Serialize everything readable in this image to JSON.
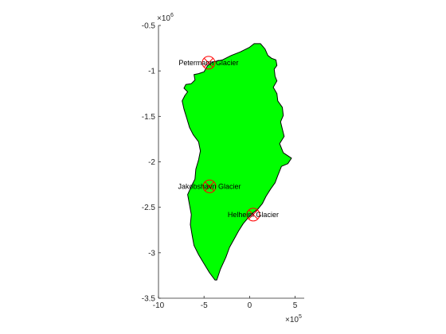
{
  "chart_data": {
    "type": "map",
    "title": "",
    "xlabel": "",
    "ylabel": "",
    "xlim": [
      -1000000,
      600000
    ],
    "ylim": [
      -3500000,
      -500000
    ],
    "grid": false,
    "x_ticks": [
      -1000000,
      -500000,
      0,
      500000
    ],
    "x_tick_labels": [
      "-10",
      "-5",
      "0",
      "5"
    ],
    "x_exponent": {
      "base": "×10",
      "power": "5"
    },
    "y_ticks": [
      -3500000,
      -3000000,
      -2500000,
      -2000000,
      -1500000,
      -1000000,
      -500000
    ],
    "y_tick_labels": [
      "-3.5",
      "-3",
      "-2.5",
      "-2",
      "-1.5",
      "-1",
      "-0.5"
    ],
    "y_exponent": {
      "base": "×10",
      "power": "6"
    },
    "land_color": "#00ff00",
    "coast_color": "#000000",
    "marker_color": "#ff0000",
    "glaciers": [
      {
        "name": "Petermann Glacier",
        "x": -450000,
        "y": -910000
      },
      {
        "name": "Jakobshavn Glacier",
        "x": -440000,
        "y": -2270000
      },
      {
        "name": "Helheim Glacier",
        "x": 40000,
        "y": -2580000
      }
    ],
    "coastline": [
      [
        -610000,
        -1040000
      ],
      [
        -560000,
        -1030000
      ],
      [
        -500000,
        -1010000
      ],
      [
        -460000,
        -940000
      ],
      [
        -400000,
        -900000
      ],
      [
        -300000,
        -880000
      ],
      [
        -200000,
        -830000
      ],
      [
        -100000,
        -790000
      ],
      [
        0,
        -740000
      ],
      [
        50000,
        -700000
      ],
      [
        120000,
        -700000
      ],
      [
        170000,
        -760000
      ],
      [
        200000,
        -830000
      ],
      [
        240000,
        -860000
      ],
      [
        290000,
        -880000
      ],
      [
        300000,
        -940000
      ],
      [
        270000,
        -980000
      ],
      [
        280000,
        -1060000
      ],
      [
        300000,
        -1110000
      ],
      [
        260000,
        -1180000
      ],
      [
        300000,
        -1250000
      ],
      [
        310000,
        -1330000
      ],
      [
        360000,
        -1400000
      ],
      [
        370000,
        -1490000
      ],
      [
        340000,
        -1560000
      ],
      [
        360000,
        -1640000
      ],
      [
        380000,
        -1720000
      ],
      [
        330000,
        -1800000
      ],
      [
        370000,
        -1900000
      ],
      [
        460000,
        -1960000
      ],
      [
        420000,
        -2020000
      ],
      [
        350000,
        -2050000
      ],
      [
        310000,
        -2150000
      ],
      [
        280000,
        -2230000
      ],
      [
        230000,
        -2300000
      ],
      [
        180000,
        -2380000
      ],
      [
        140000,
        -2460000
      ],
      [
        90000,
        -2520000
      ],
      [
        40000,
        -2560000
      ],
      [
        -20000,
        -2620000
      ],
      [
        -70000,
        -2680000
      ],
      [
        -120000,
        -2760000
      ],
      [
        -170000,
        -2850000
      ],
      [
        -220000,
        -2940000
      ],
      [
        -260000,
        -3050000
      ],
      [
        -320000,
        -3180000
      ],
      [
        -360000,
        -3300000
      ],
      [
        -380000,
        -3300000
      ],
      [
        -440000,
        -3220000
      ],
      [
        -500000,
        -3120000
      ],
      [
        -560000,
        -3020000
      ],
      [
        -610000,
        -2920000
      ],
      [
        -630000,
        -2810000
      ],
      [
        -650000,
        -2690000
      ],
      [
        -640000,
        -2580000
      ],
      [
        -660000,
        -2470000
      ],
      [
        -680000,
        -2360000
      ],
      [
        -640000,
        -2270000
      ],
      [
        -600000,
        -2190000
      ],
      [
        -590000,
        -2080000
      ],
      [
        -560000,
        -1980000
      ],
      [
        -540000,
        -1880000
      ],
      [
        -560000,
        -1780000
      ],
      [
        -620000,
        -1700000
      ],
      [
        -660000,
        -1620000
      ],
      [
        -690000,
        -1520000
      ],
      [
        -720000,
        -1420000
      ],
      [
        -740000,
        -1330000
      ],
      [
        -710000,
        -1270000
      ],
      [
        -680000,
        -1230000
      ],
      [
        -720000,
        -1190000
      ],
      [
        -700000,
        -1150000
      ],
      [
        -640000,
        -1140000
      ],
      [
        -600000,
        -1100000
      ]
    ]
  }
}
